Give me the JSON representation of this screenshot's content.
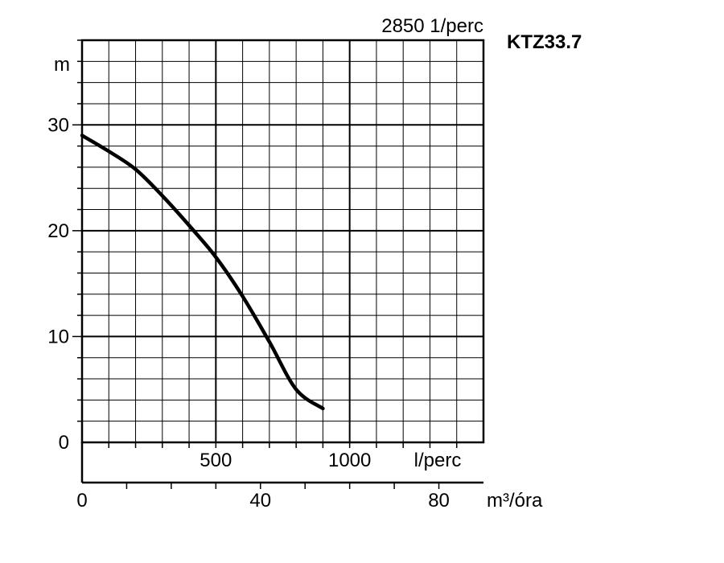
{
  "chart_data": {
    "type": "line",
    "title": "KTZ33.7",
    "speed_label": "2850 1/perc",
    "ylabel": "m",
    "ylim": [
      0,
      38
    ],
    "y_ticks": [
      0,
      10,
      20,
      30
    ],
    "x_axes": [
      {
        "unit": "l/perc",
        "range": [
          0,
          1500
        ],
        "tick_values": [
          500,
          1000
        ],
        "tick_labels": [
          "500",
          "1000"
        ]
      },
      {
        "unit": "m³/óra",
        "range": [
          0,
          90
        ],
        "tick_values": [
          0,
          40,
          80
        ],
        "tick_labels": [
          "0",
          "40",
          "80"
        ]
      }
    ],
    "grid": true,
    "series": [
      {
        "x": [
          0,
          100,
          200,
          300,
          400,
          500,
          600,
          700,
          800,
          900
        ],
        "y": [
          29,
          27.5,
          25.8,
          23.3,
          20.5,
          17.5,
          13.8,
          9.5,
          5,
          3.2
        ],
        "color": "#000000"
      }
    ]
  }
}
